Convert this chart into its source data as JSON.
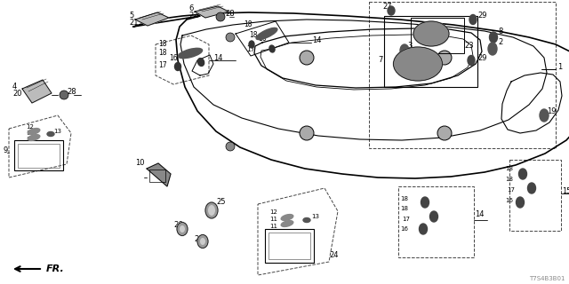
{
  "bg_color": "#ffffff",
  "line_color": "#000000",
  "part_number": "T7S4B3B01",
  "fig_width": 6.4,
  "fig_height": 3.2,
  "dpi": 100,
  "roof_outer": {
    "x": [
      0.23,
      0.27,
      0.31,
      0.355,
      0.4,
      0.46,
      0.53,
      0.6,
      0.66,
      0.71,
      0.76,
      0.8,
      0.84,
      0.87,
      0.89,
      0.895,
      0.89,
      0.875,
      0.85,
      0.82,
      0.79,
      0.75,
      0.71,
      0.66,
      0.61,
      0.56,
      0.5,
      0.44,
      0.38,
      0.32,
      0.275,
      0.245,
      0.225,
      0.215,
      0.218,
      0.225,
      0.23
    ],
    "y": [
      0.78,
      0.82,
      0.84,
      0.845,
      0.84,
      0.835,
      0.83,
      0.825,
      0.815,
      0.8,
      0.78,
      0.755,
      0.72,
      0.685,
      0.64,
      0.59,
      0.545,
      0.5,
      0.455,
      0.41,
      0.37,
      0.335,
      0.305,
      0.28,
      0.26,
      0.248,
      0.242,
      0.245,
      0.255,
      0.27,
      0.295,
      0.335,
      0.385,
      0.45,
      0.54,
      0.66,
      0.78
    ]
  },
  "roof_inner1": {
    "x": [
      0.295,
      0.33,
      0.37,
      0.42,
      0.49,
      0.55,
      0.61,
      0.65,
      0.68,
      0.7,
      0.71,
      0.71,
      0.7,
      0.68,
      0.65,
      0.6,
      0.55,
      0.49,
      0.43,
      0.375,
      0.335,
      0.305,
      0.285,
      0.278,
      0.283,
      0.295
    ],
    "y": [
      0.765,
      0.785,
      0.8,
      0.81,
      0.812,
      0.81,
      0.8,
      0.785,
      0.765,
      0.74,
      0.705,
      0.66,
      0.62,
      0.595,
      0.575,
      0.56,
      0.553,
      0.55,
      0.553,
      0.56,
      0.58,
      0.615,
      0.66,
      0.71,
      0.74,
      0.765
    ]
  },
  "sunroof_outer": {
    "x": [
      0.38,
      0.41,
      0.46,
      0.51,
      0.56,
      0.6,
      0.63,
      0.648,
      0.655,
      0.65,
      0.63,
      0.59,
      0.54,
      0.49,
      0.44,
      0.4,
      0.375,
      0.368,
      0.372,
      0.38
    ],
    "y": [
      0.75,
      0.76,
      0.768,
      0.772,
      0.768,
      0.758,
      0.74,
      0.715,
      0.68,
      0.645,
      0.62,
      0.605,
      0.598,
      0.595,
      0.6,
      0.615,
      0.64,
      0.68,
      0.718,
      0.75
    ]
  },
  "sunroof_inner": {
    "x": [
      0.398,
      0.425,
      0.468,
      0.515,
      0.558,
      0.592,
      0.618,
      0.632,
      0.638,
      0.633,
      0.615,
      0.578,
      0.535,
      0.488,
      0.442,
      0.408,
      0.386,
      0.38,
      0.384,
      0.398
    ],
    "y": [
      0.742,
      0.752,
      0.759,
      0.762,
      0.759,
      0.75,
      0.733,
      0.71,
      0.678,
      0.645,
      0.622,
      0.608,
      0.602,
      0.598,
      0.603,
      0.617,
      0.64,
      0.675,
      0.712,
      0.742
    ]
  },
  "right_recess": {
    "x": [
      0.74,
      0.76,
      0.78,
      0.8,
      0.82,
      0.835,
      0.84,
      0.838,
      0.825,
      0.805,
      0.78,
      0.758,
      0.742,
      0.738,
      0.74
    ],
    "y": [
      0.56,
      0.575,
      0.582,
      0.58,
      0.57,
      0.55,
      0.52,
      0.492,
      0.468,
      0.455,
      0.452,
      0.46,
      0.478,
      0.51,
      0.56
    ]
  },
  "left_indent": {
    "x": [
      0.28,
      0.295,
      0.305,
      0.3,
      0.283,
      0.275,
      0.28
    ],
    "y": [
      0.64,
      0.638,
      0.618,
      0.598,
      0.605,
      0.622,
      0.64
    ]
  }
}
